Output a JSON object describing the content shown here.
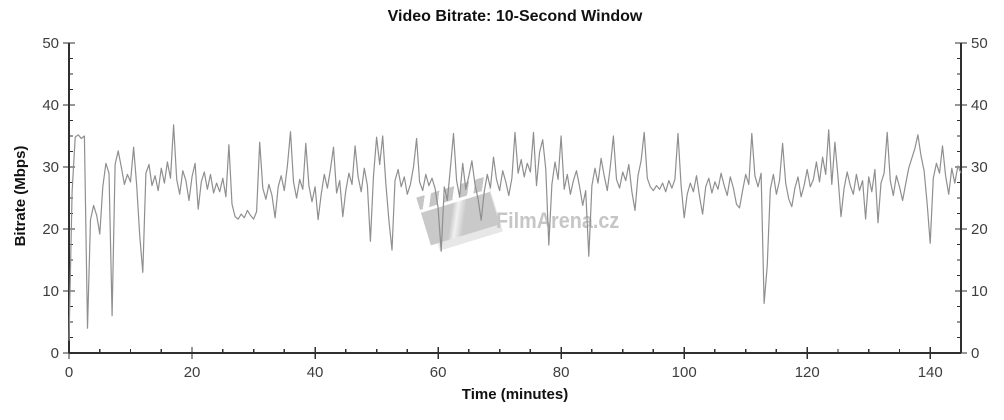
{
  "chart_data": {
    "type": "line",
    "title": "Video Bitrate: 10-Second Window",
    "xlabel": "Time (minutes)",
    "ylabel": "Bitrate (Mbps)",
    "xlim": [
      0,
      145
    ],
    "ylim": [
      0,
      50
    ],
    "x_major_ticks": [
      0,
      20,
      40,
      60,
      80,
      100,
      120,
      140
    ],
    "x_tick_labels": [
      "0",
      "20",
      "40",
      "60",
      "80",
      "100",
      "120",
      "140"
    ],
    "x_minor_step": 5,
    "y_major_ticks": [
      0,
      10,
      20,
      30,
      40,
      50
    ],
    "y_tick_labels": [
      "0",
      "10",
      "20",
      "30",
      "40",
      "50"
    ],
    "y_minor_step": 2.5,
    "grid": false,
    "legend": "none",
    "right_axis_mirror": true,
    "line_color": "#8f8f8f",
    "series": [
      {
        "name": "video-bitrate-mbps",
        "t_start": 0,
        "t_step": 0.5,
        "values": [
          2.0,
          26.0,
          34.8,
          35.2,
          34.6,
          35.0,
          4.0,
          21.5,
          23.8,
          22.2,
          19.2,
          26.8,
          30.6,
          29.0,
          6.0,
          30.4,
          32.6,
          30.0,
          27.2,
          28.8,
          27.6,
          33.2,
          27.0,
          19.0,
          13.0,
          29.0,
          30.4,
          27.0,
          28.6,
          26.2,
          29.8,
          27.4,
          30.8,
          28.2,
          36.8,
          28.0,
          25.6,
          29.4,
          27.8,
          24.6,
          28.4,
          30.6,
          23.2,
          27.6,
          29.2,
          26.4,
          28.8,
          25.8,
          27.4,
          26.0,
          28.2,
          25.2,
          33.6,
          24.0,
          22.0,
          21.6,
          22.4,
          21.8,
          23.0,
          22.2,
          21.6,
          22.8,
          34.0,
          26.6,
          24.8,
          27.2,
          25.4,
          21.8,
          26.8,
          28.6,
          26.2,
          30.2,
          35.7,
          27.6,
          25.0,
          28.0,
          26.4,
          33.8,
          27.0,
          24.4,
          26.8,
          21.5,
          25.6,
          28.8,
          26.6,
          29.6,
          33.2,
          25.8,
          27.8,
          22.0,
          26.2,
          29.0,
          27.2,
          33.4,
          28.4,
          26.0,
          29.8,
          27.0,
          18.0,
          28.6,
          34.8,
          30.4,
          35.0,
          27.4,
          21.4,
          16.6,
          27.8,
          29.6,
          26.8,
          28.4,
          25.6,
          27.2,
          30.0,
          34.6,
          27.6,
          26.2,
          28.8,
          27.0,
          28.2,
          26.6,
          23.4,
          16.4,
          26.8,
          24.6,
          29.8,
          35.4,
          27.8,
          25.2,
          30.6,
          26.4,
          28.6,
          31.0,
          27.2,
          24.8,
          21.4,
          26.0,
          28.8,
          26.6,
          31.6,
          28.0,
          26.2,
          29.4,
          27.6,
          25.4,
          28.2,
          35.6,
          29.0,
          31.2,
          28.4,
          30.6,
          29.2,
          35.6,
          27.0,
          32.4,
          34.4,
          29.6,
          17.4,
          27.2,
          30.8,
          28.0,
          35.0,
          26.4,
          28.8,
          25.6,
          27.8,
          29.4,
          26.8,
          23.8,
          26.2,
          15.6,
          27.0,
          29.8,
          27.4,
          31.4,
          28.6,
          26.2,
          30.2,
          35.0,
          28.0,
          26.6,
          29.2,
          27.8,
          30.4,
          26.0,
          23.0,
          28.6,
          31.0,
          35.6,
          28.2,
          26.8,
          26.2,
          27.0,
          26.4,
          27.4,
          26.0,
          27.8,
          26.6,
          28.0,
          35.4,
          27.0,
          21.8,
          25.6,
          27.4,
          26.0,
          28.6,
          25.2,
          22.4,
          26.8,
          28.2,
          25.8,
          27.6,
          26.4,
          29.0,
          27.0,
          25.4,
          28.4,
          26.6,
          24.0,
          23.4,
          26.2,
          28.8,
          27.2,
          35.4,
          28.6,
          26.8,
          29.0,
          8.0,
          14.0,
          26.4,
          28.8,
          25.6,
          27.8,
          33.8,
          27.4,
          24.8,
          23.6,
          26.6,
          28.4,
          25.2,
          27.0,
          29.6,
          26.8,
          28.0,
          30.8,
          27.6,
          31.6,
          28.8,
          36.0,
          27.2,
          34.0,
          28.4,
          22.0,
          26.6,
          29.2,
          27.0,
          25.6,
          28.8,
          26.2,
          27.8,
          21.6,
          28.4,
          26.0,
          29.6,
          21.0,
          27.4,
          29.0,
          35.6,
          27.8,
          25.4,
          28.6,
          26.8,
          24.6,
          27.2,
          29.8,
          31.4,
          33.0,
          35.2,
          31.8,
          29.4,
          24.0,
          17.7,
          28.2,
          30.6,
          29.0,
          33.4,
          28.6,
          25.6,
          29.8,
          27.4,
          30.2,
          29.0
        ]
      }
    ]
  },
  "watermark": {
    "text": "FilmArena.cz"
  },
  "colors": {
    "axis": "#2f2f2f",
    "tick_label": "#3e3e3e",
    "line": "#8f8f8f",
    "watermark": "#c6c6c6",
    "background": "#ffffff"
  }
}
